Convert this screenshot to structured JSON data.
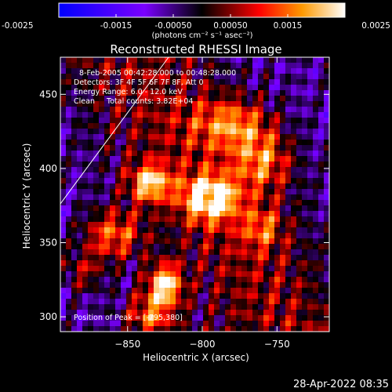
{
  "chart_data": {
    "type": "heatmap",
    "title": "Reconstructed RHESSI Image",
    "xlabel": "Heliocentric X (arcsec)",
    "ylabel": "Heliocentric Y (arcsec)",
    "xlim": [
      -895,
      -715
    ],
    "ylim": [
      290,
      475
    ],
    "xticks": [
      -850,
      -800,
      -750
    ],
    "yticks": [
      300,
      350,
      400,
      450
    ],
    "colorbar": {
      "min": -0.0025,
      "max": 0.0025,
      "ticks": [
        "-0.0025",
        "-0.0015",
        "-0.00050",
        "0.00050",
        "0.0015",
        "0.0025"
      ],
      "unit_label": "(photons cm⁻² s⁻¹ asec⁻²)",
      "colormap": [
        "#0000ff",
        "#7a00ff",
        "#000000",
        "#ff0000",
        "#ff9900",
        "#ffffff"
      ]
    },
    "peak": {
      "x": -795,
      "y": 380
    },
    "sources": [
      {
        "x": -795,
        "y": 380,
        "amp": 1.0,
        "sx": 12,
        "sy": 10
      },
      {
        "x": -835,
        "y": 390,
        "amp": 0.75,
        "sx": 10,
        "sy": 9
      },
      {
        "x": -825,
        "y": 322,
        "amp": 0.85,
        "sx": 8,
        "sy": 10
      },
      {
        "x": -860,
        "y": 355,
        "amp": 0.6,
        "sx": 14,
        "sy": 12
      },
      {
        "x": -780,
        "y": 430,
        "amp": 0.55,
        "sx": 18,
        "sy": 12
      },
      {
        "x": -760,
        "y": 405,
        "amp": 0.55,
        "sx": 14,
        "sy": 14
      },
      {
        "x": -835,
        "y": 300,
        "amp": 0.6,
        "sx": 12,
        "sy": 12
      },
      {
        "x": -760,
        "y": 360,
        "amp": 0.4,
        "sx": 10,
        "sy": 10
      },
      {
        "x": -880,
        "y": 330,
        "amp": 0.35,
        "sx": 10,
        "sy": 10
      }
    ],
    "annotations": [
      "8-Feb-2005 00:42:28.000 to 00:48:28.000",
      "Detectors: 3F 4F 5F 6F 7F 8F, Att 0",
      "Energy Range: 6.0 - 12.0 keV",
      "Clean     Total counts: 3.82E+04",
      "Position of Peak = [-795,380]"
    ]
  },
  "footer": {
    "timestamp": "28-Apr-2022 08:35"
  }
}
